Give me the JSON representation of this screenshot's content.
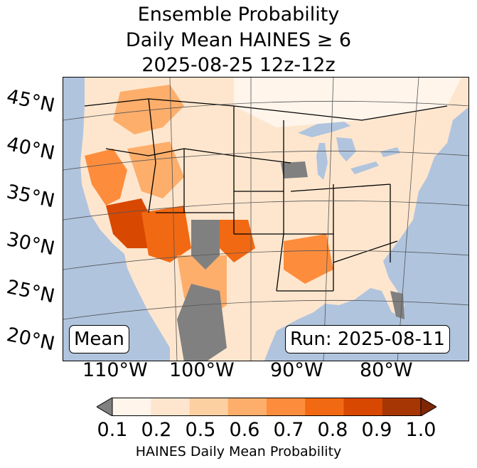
{
  "title": {
    "line1": "Ensemble Probability",
    "line2": "Daily Mean HAINES ≥ 6",
    "line3": "2025-08-25 12z-12z"
  },
  "map": {
    "latitude_labels": [
      "45°N",
      "40°N",
      "35°N",
      "30°N",
      "25°N",
      "20°N"
    ],
    "longitude_labels": [
      "110°W",
      "100°W",
      "90°W",
      "80°W"
    ],
    "colors": {
      "ocean": "#b0c4de",
      "land_low": "#fff5eb",
      "land": "#fee6ce",
      "no_data_gray": "#808080",
      "state_lines": "#000000",
      "graticule": "#555555"
    }
  },
  "overlays": {
    "stat_label": "Mean",
    "run_label": "Run: 2025-08-11"
  },
  "colorbar": {
    "ticks": [
      "0.1",
      "0.2",
      "0.5",
      "0.6",
      "0.7",
      "0.8",
      "0.9",
      "1.0"
    ],
    "colors": [
      "#fff5eb",
      "#fee6ce",
      "#fdd0a2",
      "#fdae6b",
      "#fd8d3c",
      "#f16913",
      "#d94801",
      "#a63603"
    ],
    "under_color": "#808080",
    "over_color": "#7f2704",
    "label": "HAINES Daily Mean Probability"
  }
}
